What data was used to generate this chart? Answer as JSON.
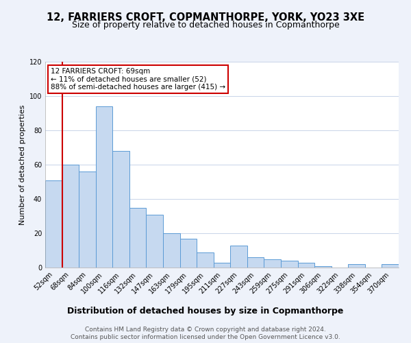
{
  "title": "12, FARRIERS CROFT, COPMANTHORPE, YORK, YO23 3XE",
  "subtitle": "Size of property relative to detached houses in Copmanthorpe",
  "xlabel": "Distribution of detached houses by size in Copmanthorpe",
  "ylabel": "Number of detached properties",
  "footer_line1": "Contains HM Land Registry data © Crown copyright and database right 2024.",
  "footer_line2": "Contains public sector information licensed under the Open Government Licence v3.0.",
  "annotation_title": "12 FARRIERS CROFT: 69sqm",
  "annotation_line1": "← 11% of detached houses are smaller (52)",
  "annotation_line2": "88% of semi-detached houses are larger (415) →",
  "bar_labels": [
    "52sqm",
    "68sqm",
    "84sqm",
    "100sqm",
    "116sqm",
    "132sqm",
    "147sqm",
    "163sqm",
    "179sqm",
    "195sqm",
    "211sqm",
    "227sqm",
    "243sqm",
    "259sqm",
    "275sqm",
    "291sqm",
    "306sqm",
    "322sqm",
    "338sqm",
    "354sqm",
    "370sqm"
  ],
  "bar_values": [
    51,
    60,
    56,
    94,
    68,
    35,
    31,
    20,
    17,
    9,
    3,
    13,
    6,
    5,
    4,
    3,
    1,
    0,
    2,
    0,
    2
  ],
  "bar_color": "#c6d9f0",
  "bar_edge_color": "#5b9bd5",
  "ylim": [
    0,
    120
  ],
  "yticks": [
    0,
    20,
    40,
    60,
    80,
    100,
    120
  ],
  "bg_color": "#eef2fa",
  "plot_bg_color": "#ffffff",
  "annotation_box_color": "#ffffff",
  "annotation_box_edge": "#cc0000",
  "red_line_color": "#cc0000",
  "title_fontsize": 10.5,
  "subtitle_fontsize": 9,
  "xlabel_fontsize": 9,
  "ylabel_fontsize": 8,
  "annotation_fontsize": 7.5,
  "footer_fontsize": 6.5,
  "tick_fontsize": 7
}
